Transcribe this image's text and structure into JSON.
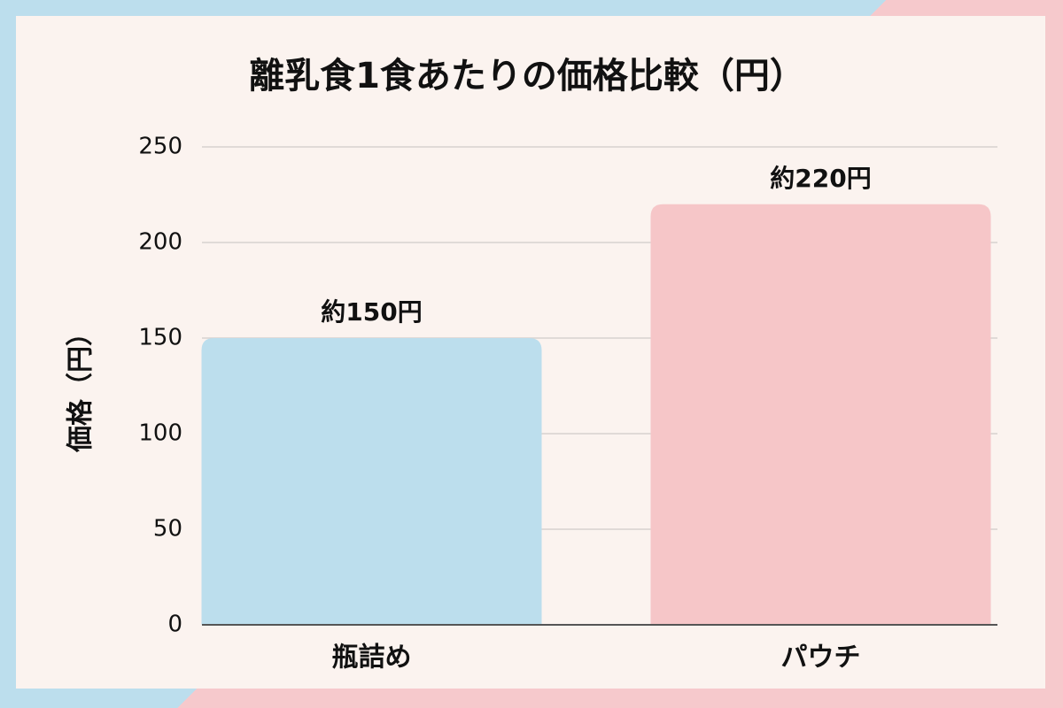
{
  "chart_data": {
    "type": "bar",
    "title": "離乳食1食あたりの価格比較（円）",
    "y_label": "価格（円）",
    "categories": [
      "瓶詰め",
      "パウチ"
    ],
    "values": [
      150,
      220
    ],
    "value_labels": [
      "約150円",
      "約220円"
    ],
    "colors": [
      "#bcdeed",
      "#f6c6c8"
    ],
    "ylim": [
      0,
      250
    ],
    "yticks": [
      0,
      50,
      100,
      150,
      200,
      250
    ],
    "grid": true
  }
}
